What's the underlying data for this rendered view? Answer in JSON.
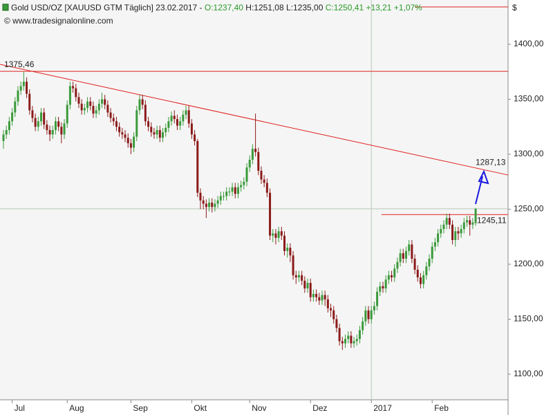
{
  "chart_data": {
    "type": "candlestick",
    "title": "Gold USD/OZ [XAUUSD GTM  Täglich] 23.02.2017 -",
    "quote": [
      "O:1237,40",
      "H:1251,08 L:1235,00",
      "C:1250,41 +13,21 +1,07%"
    ],
    "source": "© www.tradesignalonline.com",
    "currency": "$",
    "up_color": "#3a9a3a",
    "down_color": "#8b1a1a",
    "line_color": "#e0201c",
    "categories": [
      null,
      null,
      null,
      "Jul",
      null,
      null,
      null,
      null,
      null,
      null,
      null,
      null,
      null,
      null,
      null,
      null,
      null,
      null,
      null,
      null,
      null,
      null,
      "Aug",
      null,
      null,
      null,
      null,
      null,
      null,
      null,
      null,
      null,
      null,
      null,
      null,
      null,
      null,
      null,
      null,
      null,
      null,
      null,
      null,
      null,
      "Sep",
      null,
      null,
      null,
      null,
      null,
      null,
      null,
      null,
      null,
      null,
      null,
      null,
      null,
      null,
      null,
      null,
      null,
      null,
      null,
      null,
      "Okt",
      null,
      null,
      null,
      null,
      null,
      null,
      null,
      null,
      null,
      null,
      null,
      null,
      null,
      null,
      null,
      null,
      null,
      null,
      null,
      "Nov",
      null,
      null,
      null,
      null,
      null,
      null,
      null,
      null,
      null,
      null,
      null,
      null,
      null,
      null,
      null,
      null,
      null,
      null,
      null,
      null,
      "Dez",
      null,
      null,
      null,
      null,
      null,
      null,
      null,
      null,
      null,
      null,
      null,
      null,
      null,
      null,
      null,
      null,
      null,
      null,
      null,
      null,
      "2017",
      null,
      null,
      null,
      null,
      null,
      null,
      null,
      null,
      null,
      null,
      null,
      null,
      null,
      null,
      null,
      null,
      null,
      null,
      null,
      null,
      "Feb",
      null,
      null,
      null,
      null,
      null,
      null,
      null,
      null,
      null,
      null,
      null,
      null,
      null,
      null,
      null
    ],
    "open": [
      1312,
      1318,
      1322,
      1330,
      1338,
      1348,
      1358,
      1362,
      1366,
      1355,
      1340,
      1333,
      1325,
      1330,
      1338,
      1327,
      1322,
      1318,
      1322,
      1330,
      1325,
      1318,
      1328,
      1345,
      1362,
      1360,
      1352,
      1346,
      1340,
      1342,
      1348,
      1344,
      1337,
      1340,
      1346,
      1350,
      1345,
      1338,
      1333,
      1330,
      1325,
      1320,
      1318,
      1315,
      1310,
      1306,
      1316,
      1340,
      1350,
      1345,
      1330,
      1325,
      1320,
      1318,
      1322,
      1315,
      1320,
      1324,
      1330,
      1335,
      1332,
      1326,
      1330,
      1336,
      1340,
      1328,
      1318,
      1312,
      1265,
      1258,
      1255,
      1252,
      1256,
      1252,
      1255,
      1258,
      1262,
      1262,
      1266,
      1266,
      1270,
      1264,
      1270,
      1272,
      1275,
      1288,
      1295,
      1305,
      1302,
      1285,
      1277,
      1274,
      1265,
      1226,
      1228,
      1224,
      1230,
      1226,
      1212,
      1215,
      1208,
      1190,
      1188,
      1190,
      1185,
      1178,
      1183,
      1170,
      1173,
      1170,
      1167,
      1172,
      1168,
      1160,
      1158,
      1150,
      1142,
      1130,
      1128,
      1132,
      1135,
      1128,
      1130,
      1132,
      1140,
      1148,
      1158,
      1150,
      1158,
      1162,
      1175,
      1180,
      1178,
      1186,
      1190,
      1188,
      1196,
      1202,
      1210,
      1205,
      1212,
      1218,
      1205,
      1195,
      1188,
      1182,
      1190,
      1198,
      1205,
      1216,
      1220,
      1228,
      1232,
      1236,
      1242,
      1236,
      1222,
      1230,
      1228,
      1232,
      1238,
      1240,
      1236,
      1237.4
    ],
    "high": [
      1322,
      1326,
      1334,
      1342,
      1352,
      1362,
      1366,
      1375,
      1370,
      1359,
      1344,
      1337,
      1334,
      1342,
      1342,
      1331,
      1326,
      1326,
      1334,
      1334,
      1329,
      1332,
      1349,
      1366,
      1366,
      1364,
      1356,
      1350,
      1346,
      1352,
      1352,
      1348,
      1344,
      1350,
      1356,
      1354,
      1349,
      1342,
      1337,
      1334,
      1329,
      1324,
      1322,
      1319,
      1314,
      1320,
      1344,
      1354,
      1354,
      1349,
      1334,
      1329,
      1324,
      1326,
      1326,
      1324,
      1328,
      1334,
      1339,
      1340,
      1336,
      1334,
      1340,
      1344,
      1344,
      1332,
      1322,
      1314,
      1269,
      1262,
      1259,
      1260,
      1260,
      1259,
      1262,
      1266,
      1266,
      1270,
      1270,
      1274,
      1274,
      1274,
      1276,
      1279,
      1292,
      1299,
      1309,
      1337,
      1306,
      1289,
      1281,
      1278,
      1269,
      1232,
      1232,
      1234,
      1234,
      1230,
      1219,
      1219,
      1212,
      1194,
      1194,
      1194,
      1189,
      1187,
      1187,
      1177,
      1177,
      1174,
      1176,
      1176,
      1172,
      1164,
      1162,
      1154,
      1146,
      1134,
      1136,
      1139,
      1139,
      1134,
      1136,
      1144,
      1152,
      1162,
      1162,
      1162,
      1166,
      1179,
      1184,
      1184,
      1190,
      1194,
      1194,
      1200,
      1206,
      1214,
      1214,
      1216,
      1222,
      1222,
      1209,
      1199,
      1192,
      1194,
      1202,
      1209,
      1220,
      1224,
      1232,
      1236,
      1240,
      1246,
      1246,
      1240,
      1234,
      1234,
      1236,
      1242,
      1244,
      1244,
      1242,
      1251.08
    ],
    "low": [
      1305,
      1314,
      1318,
      1326,
      1334,
      1344,
      1354,
      1358,
      1351,
      1336,
      1329,
      1321,
      1321,
      1326,
      1323,
      1318,
      1312,
      1314,
      1318,
      1321,
      1310,
      1314,
      1324,
      1341,
      1356,
      1348,
      1342,
      1336,
      1336,
      1338,
      1340,
      1333,
      1333,
      1336,
      1342,
      1341,
      1334,
      1329,
      1326,
      1321,
      1316,
      1314,
      1311,
      1306,
      1300,
      1302,
      1312,
      1336,
      1341,
      1326,
      1321,
      1316,
      1314,
      1314,
      1311,
      1311,
      1316,
      1320,
      1326,
      1328,
      1322,
      1322,
      1326,
      1332,
      1324,
      1314,
      1308,
      1261,
      1250,
      1250,
      1242,
      1248,
      1247,
      1248,
      1251,
      1254,
      1258,
      1258,
      1262,
      1262,
      1260,
      1260,
      1266,
      1268,
      1271,
      1284,
      1291,
      1298,
      1281,
      1273,
      1270,
      1261,
      1222,
      1220,
      1218,
      1220,
      1222,
      1208,
      1206,
      1202,
      1186,
      1182,
      1184,
      1181,
      1174,
      1174,
      1166,
      1166,
      1166,
      1163,
      1163,
      1162,
      1156,
      1152,
      1146,
      1138,
      1126,
      1122,
      1124,
      1128,
      1124,
      1124,
      1126,
      1128,
      1136,
      1144,
      1146,
      1146,
      1154,
      1158,
      1171,
      1174,
      1174,
      1182,
      1184,
      1184,
      1192,
      1198,
      1201,
      1201,
      1208,
      1201,
      1191,
      1184,
      1178,
      1178,
      1186,
      1194,
      1201,
      1212,
      1216,
      1224,
      1228,
      1232,
      1232,
      1218,
      1216,
      1222,
      1224,
      1228,
      1234,
      1226,
      1232,
      1235
    ],
    "close": [
      1318,
      1322,
      1330,
      1338,
      1348,
      1358,
      1362,
      1366,
      1355,
      1340,
      1333,
      1325,
      1330,
      1338,
      1327,
      1322,
      1318,
      1322,
      1330,
      1325,
      1318,
      1328,
      1345,
      1362,
      1360,
      1352,
      1346,
      1340,
      1342,
      1348,
      1344,
      1337,
      1340,
      1346,
      1350,
      1345,
      1338,
      1333,
      1330,
      1325,
      1320,
      1318,
      1315,
      1310,
      1306,
      1316,
      1340,
      1350,
      1345,
      1330,
      1325,
      1320,
      1318,
      1322,
      1315,
      1320,
      1324,
      1330,
      1335,
      1332,
      1326,
      1330,
      1336,
      1340,
      1328,
      1318,
      1312,
      1265,
      1258,
      1255,
      1252,
      1256,
      1252,
      1255,
      1258,
      1262,
      1262,
      1266,
      1266,
      1270,
      1264,
      1270,
      1272,
      1275,
      1288,
      1295,
      1305,
      1302,
      1285,
      1277,
      1274,
      1265,
      1226,
      1228,
      1224,
      1230,
      1226,
      1212,
      1215,
      1208,
      1190,
      1188,
      1190,
      1185,
      1178,
      1183,
      1170,
      1173,
      1170,
      1167,
      1172,
      1168,
      1160,
      1158,
      1150,
      1142,
      1130,
      1128,
      1132,
      1135,
      1128,
      1130,
      1132,
      1140,
      1148,
      1158,
      1150,
      1158,
      1162,
      1175,
      1180,
      1178,
      1186,
      1190,
      1188,
      1196,
      1202,
      1210,
      1205,
      1212,
      1218,
      1205,
      1195,
      1188,
      1182,
      1190,
      1198,
      1205,
      1216,
      1220,
      1228,
      1232,
      1236,
      1242,
      1236,
      1222,
      1230,
      1228,
      1232,
      1238,
      1240,
      1236,
      1238,
      1250.41
    ],
    "xlim": [
      -1.2,
      174.2
    ],
    "ylim": [
      1076.7,
      1440.3
    ],
    "yticks": [
      {
        "value": 1100,
        "label": "1100,00"
      },
      {
        "value": 1150,
        "label": "1150,00"
      },
      {
        "value": 1200,
        "label": "1200,00"
      },
      {
        "value": 1250,
        "label": "1250,00"
      },
      {
        "value": 1300,
        "label": "1300,00"
      },
      {
        "value": 1350,
        "label": "1350,00"
      },
      {
        "value": 1400,
        "label": "1400,00"
      }
    ],
    "levels": [
      {
        "value": 1375.46,
        "label": "1375,46",
        "start": -1.2
      },
      {
        "value": 1245.11,
        "label": "1245,11",
        "start": 130.5
      },
      {
        "value": 1434,
        "start": 142
      }
    ],
    "trendline": {
      "x": [
        -1.2,
        174.2
      ],
      "y": [
        1381.8,
        1281.1
      ],
      "value": 1287.13,
      "label": "1287,13"
    }
  }
}
